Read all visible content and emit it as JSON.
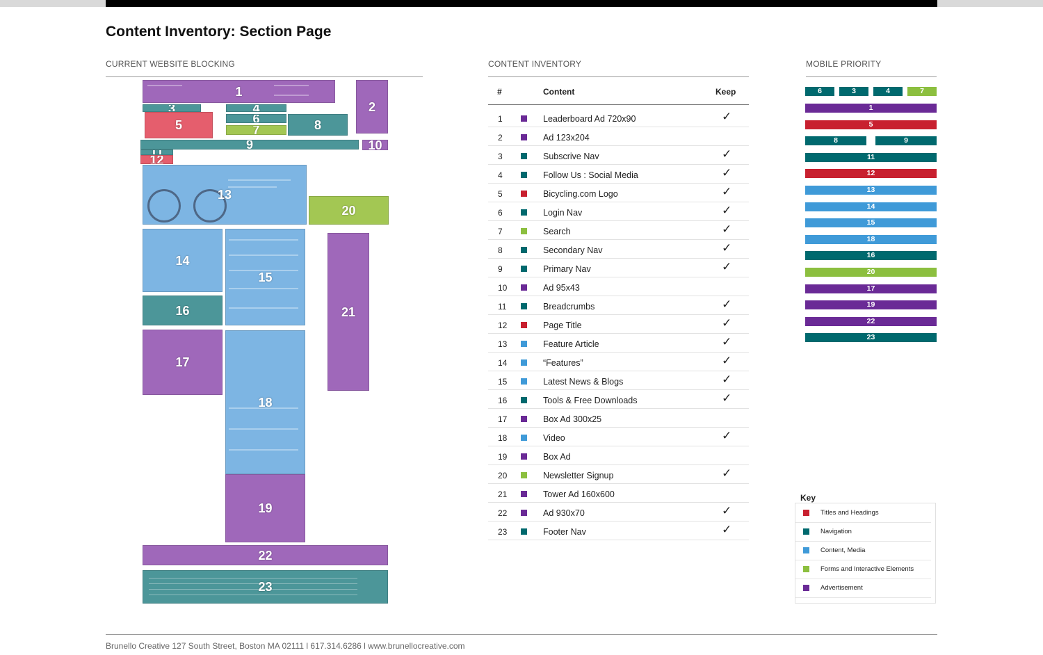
{
  "page": {
    "title": "Content Inventory: Section Page"
  },
  "sections": {
    "blocking": "CURRENT WEBSITE BLOCKING",
    "inventory": "CONTENT INVENTORY",
    "mobile": "MOBILE PRIORITY"
  },
  "colors": {
    "titles": "#c8202f",
    "navigation": "#00696e",
    "content": "#3f9ad8",
    "forms": "#8cbf3f",
    "advertisement": "#6a2a96"
  },
  "wireframe_numbers": [
    "1",
    "2",
    "3",
    "4",
    "5",
    "6",
    "7",
    "8",
    "9",
    "10",
    "11",
    "12",
    "13",
    "14",
    "15",
    "16",
    "17",
    "18",
    "19",
    "20",
    "21",
    "22",
    "23"
  ],
  "inventory": {
    "headers": {
      "num": "#",
      "content": "Content",
      "keep": "Keep"
    },
    "check_glyph": "✓",
    "rows": [
      {
        "n": "1",
        "label": "Leaderboard Ad 720x90",
        "cat": "advertisement",
        "keep": true
      },
      {
        "n": "2",
        "label": "Ad 123x204",
        "cat": "advertisement",
        "keep": false
      },
      {
        "n": "3",
        "label": "Subscrive Nav",
        "cat": "navigation",
        "keep": true
      },
      {
        "n": "4",
        "label": "Follow Us : Social Media",
        "cat": "navigation",
        "keep": true
      },
      {
        "n": "5",
        "label": "Bicycling.com Logo",
        "cat": "titles",
        "keep": true
      },
      {
        "n": "6",
        "label": "Login Nav",
        "cat": "navigation",
        "keep": true
      },
      {
        "n": "7",
        "label": "Search",
        "cat": "forms",
        "keep": true
      },
      {
        "n": "8",
        "label": "Secondary Nav",
        "cat": "navigation",
        "keep": true
      },
      {
        "n": "9",
        "label": "Primary Nav",
        "cat": "navigation",
        "keep": true
      },
      {
        "n": "10",
        "label": "Ad 95x43",
        "cat": "advertisement",
        "keep": false
      },
      {
        "n": "11",
        "label": "Breadcrumbs",
        "cat": "navigation",
        "keep": true
      },
      {
        "n": "12",
        "label": "Page Title",
        "cat": "titles",
        "keep": true
      },
      {
        "n": "13",
        "label": "Feature Article",
        "cat": "content",
        "keep": true
      },
      {
        "n": "14",
        "label": "“Features”",
        "cat": "content",
        "keep": true
      },
      {
        "n": "15",
        "label": "Latest News & Blogs",
        "cat": "content",
        "keep": true
      },
      {
        "n": "16",
        "label": "Tools & Free Downloads",
        "cat": "navigation",
        "keep": true
      },
      {
        "n": "17",
        "label": "Box Ad 300x25",
        "cat": "advertisement",
        "keep": false
      },
      {
        "n": "18",
        "label": "Video",
        "cat": "content",
        "keep": true
      },
      {
        "n": "19",
        "label": "Box Ad",
        "cat": "advertisement",
        "keep": false
      },
      {
        "n": "20",
        "label": "Newsletter Signup",
        "cat": "forms",
        "keep": true
      },
      {
        "n": "21",
        "label": "Tower Ad 160x600",
        "cat": "advertisement",
        "keep": false
      },
      {
        "n": "22",
        "label": "Ad 930x70",
        "cat": "advertisement",
        "keep": true
      },
      {
        "n": "23",
        "label": "Footer Nav",
        "cat": "navigation",
        "keep": true
      }
    ]
  },
  "mobile_priority": {
    "top_row": [
      {
        "label": "6",
        "cat": "navigation"
      },
      {
        "label": "3",
        "cat": "navigation"
      },
      {
        "label": "4",
        "cat": "navigation"
      },
      {
        "label": "7",
        "cat": "forms"
      }
    ],
    "pair_row": [
      {
        "label": "8",
        "cat": "navigation"
      },
      {
        "label": "9",
        "cat": "navigation"
      }
    ],
    "bars": [
      {
        "label": "1",
        "cat": "advertisement"
      },
      {
        "label": "5",
        "cat": "titles"
      },
      {
        "label": "11",
        "cat": "navigation"
      },
      {
        "label": "12",
        "cat": "titles"
      },
      {
        "label": "13",
        "cat": "content"
      },
      {
        "label": "14",
        "cat": "content"
      },
      {
        "label": "15",
        "cat": "content"
      },
      {
        "label": "18",
        "cat": "content"
      },
      {
        "label": "16",
        "cat": "navigation"
      },
      {
        "label": "20",
        "cat": "forms"
      },
      {
        "label": "17",
        "cat": "advertisement"
      },
      {
        "label": "19",
        "cat": "advertisement"
      },
      {
        "label": "22",
        "cat": "advertisement"
      },
      {
        "label": "23",
        "cat": "navigation"
      }
    ]
  },
  "key": {
    "title": "Key",
    "items": [
      {
        "label": "Titles and Headings",
        "cat": "titles"
      },
      {
        "label": "Navigation",
        "cat": "navigation"
      },
      {
        "label": "Content, Media",
        "cat": "content"
      },
      {
        "label": "Forms and Interactive Elements",
        "cat": "forms"
      },
      {
        "label": "Advertisement",
        "cat": "advertisement"
      }
    ]
  },
  "footer": {
    "text": "Brunello Creative 127 South Street, Boston MA 02111 l 617.314.6286 l www.brunellocreative.com"
  }
}
